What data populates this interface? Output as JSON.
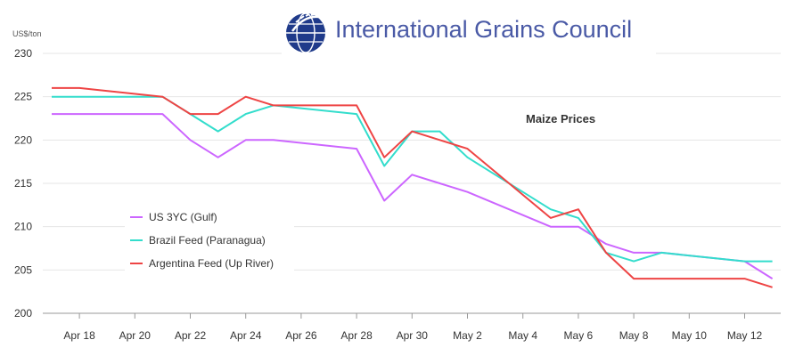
{
  "logo": {
    "text": "International Grains Council",
    "icon": "wheat-globe-icon"
  },
  "chart_data": {
    "type": "line",
    "title": "Maize Prices",
    "ylabel": "US$/ton",
    "xlabel": "",
    "ylim": [
      200,
      230
    ],
    "yticks": [
      200,
      205,
      210,
      215,
      220,
      225,
      230
    ],
    "xticks": [
      "Apr 18",
      "Apr 20",
      "Apr 22",
      "Apr 24",
      "Apr 26",
      "Apr 28",
      "Apr 30",
      "May 2",
      "May 4",
      "May 6",
      "May 8",
      "May 10",
      "May 12"
    ],
    "grid": "horizontal",
    "legend_position": "left",
    "x": [
      "Apr 17",
      "Apr 18",
      "Apr 21",
      "Apr 22",
      "Apr 23",
      "Apr 24",
      "Apr 25",
      "Apr 28",
      "Apr 29",
      "Apr 30",
      "May 1",
      "May 2",
      "May 5",
      "May 6",
      "May 7",
      "May 8",
      "May 9",
      "May 12",
      "May 13"
    ],
    "series": [
      {
        "name": "US 3YC (Gulf)",
        "color": "#cc66ff",
        "values": [
          223,
          223,
          223,
          220,
          218,
          220,
          220,
          219,
          213,
          216,
          215,
          214,
          210,
          210,
          208,
          207,
          207,
          206,
          204
        ]
      },
      {
        "name": "Brazil Feed (Paranagua)",
        "color": "#33ddcc",
        "values": [
          225,
          225,
          225,
          223,
          221,
          223,
          224,
          223,
          217,
          221,
          221,
          218,
          212,
          211,
          207,
          206,
          207,
          206,
          206
        ]
      },
      {
        "name": "Argentina Feed (Up River)",
        "color": "#ee4444",
        "values": [
          226,
          226,
          225,
          223,
          223,
          225,
          224,
          224,
          218,
          221,
          220,
          219,
          211,
          212,
          207,
          204,
          204,
          204,
          203
        ]
      }
    ]
  }
}
